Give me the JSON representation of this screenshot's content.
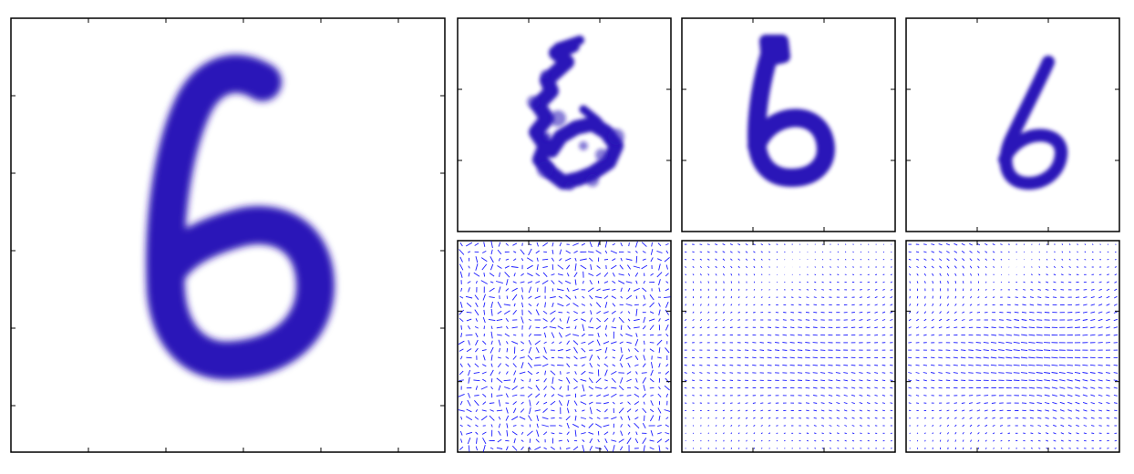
{
  "figure": {
    "ink_color": "#2a14b8",
    "field_color": "#1a1aff",
    "frame_color": "#000000",
    "background_color": "#ffffff",
    "panels": [
      {
        "name": "original-digit",
        "kind": "digit",
        "variant": "large"
      },
      {
        "name": "warped-digit-1",
        "kind": "digit",
        "variant": "noisy"
      },
      {
        "name": "warped-digit-2",
        "kind": "digit",
        "variant": "bold"
      },
      {
        "name": "warped-digit-3",
        "kind": "digit",
        "variant": "slanted"
      },
      {
        "name": "displacement-field-1",
        "kind": "field",
        "variant": "random"
      },
      {
        "name": "displacement-field-2",
        "kind": "field",
        "variant": "smooth"
      },
      {
        "name": "displacement-field-3",
        "kind": "field",
        "variant": "smoother"
      }
    ]
  }
}
